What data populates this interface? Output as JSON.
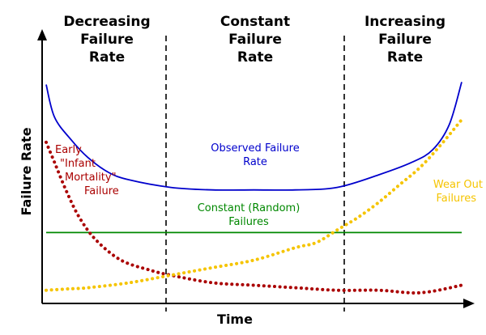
{
  "chart_data": {
    "type": "line",
    "title": "",
    "xlabel": "Time",
    "ylabel": "Failure Rate",
    "grid": false,
    "regions": [
      {
        "title": [
          "Decreasing",
          "Failure",
          "Rate"
        ]
      },
      {
        "title": [
          "Constant",
          "Failure",
          "Rate"
        ]
      },
      {
        "title": [
          "Increasing",
          "Failure",
          "Rate"
        ]
      }
    ],
    "series": [
      {
        "label": [
          "Observed Failure",
          "Rate"
        ],
        "color": "#0000cc",
        "style": "solid",
        "points": [
          [
            0,
            0.85
          ],
          [
            0.02,
            0.72
          ],
          [
            0.06,
            0.63
          ],
          [
            0.1,
            0.56
          ],
          [
            0.15,
            0.5
          ],
          [
            0.2,
            0.47
          ],
          [
            0.3,
            0.44
          ],
          [
            0.4,
            0.43
          ],
          [
            0.5,
            0.43
          ],
          [
            0.6,
            0.43
          ],
          [
            0.7,
            0.44
          ],
          [
            0.8,
            0.49
          ],
          [
            0.88,
            0.54
          ],
          [
            0.93,
            0.59
          ],
          [
            0.97,
            0.69
          ],
          [
            1.0,
            0.86
          ]
        ]
      },
      {
        "label": [
          "Constant (Random)",
          "Failures"
        ],
        "color": "#008800",
        "style": "solid",
        "points": [
          [
            0,
            0.26
          ],
          [
            1.0,
            0.26
          ]
        ]
      },
      {
        "label": [
          "Early",
          "\"Infant",
          "Mortality\"",
          "Failure"
        ],
        "color": "#aa0000",
        "style": "dotted",
        "points": [
          [
            0,
            0.62
          ],
          [
            0.02,
            0.54
          ],
          [
            0.05,
            0.42
          ],
          [
            0.08,
            0.32
          ],
          [
            0.12,
            0.23
          ],
          [
            0.18,
            0.15
          ],
          [
            0.25,
            0.11
          ],
          [
            0.3,
            0.09
          ],
          [
            0.4,
            0.06
          ],
          [
            0.5,
            0.05
          ],
          [
            0.6,
            0.04
          ],
          [
            0.7,
            0.03
          ],
          [
            0.8,
            0.03
          ],
          [
            0.9,
            0.02
          ],
          [
            1.0,
            0.05
          ]
        ]
      },
      {
        "label": [
          "Wear Out",
          "Failures"
        ],
        "color": "#f5c400",
        "style": "dotted",
        "points": [
          [
            0,
            0.03
          ],
          [
            0.05,
            0.035
          ],
          [
            0.1,
            0.04
          ],
          [
            0.2,
            0.06
          ],
          [
            0.3,
            0.09
          ],
          [
            0.4,
            0.12
          ],
          [
            0.5,
            0.15
          ],
          [
            0.6,
            0.2
          ],
          [
            0.65,
            0.22
          ],
          [
            0.7,
            0.27
          ],
          [
            0.75,
            0.32
          ],
          [
            0.8,
            0.38
          ],
          [
            0.85,
            0.45
          ],
          [
            0.9,
            0.52
          ],
          [
            0.95,
            0.61
          ],
          [
            1.0,
            0.71
          ]
        ]
      }
    ]
  }
}
